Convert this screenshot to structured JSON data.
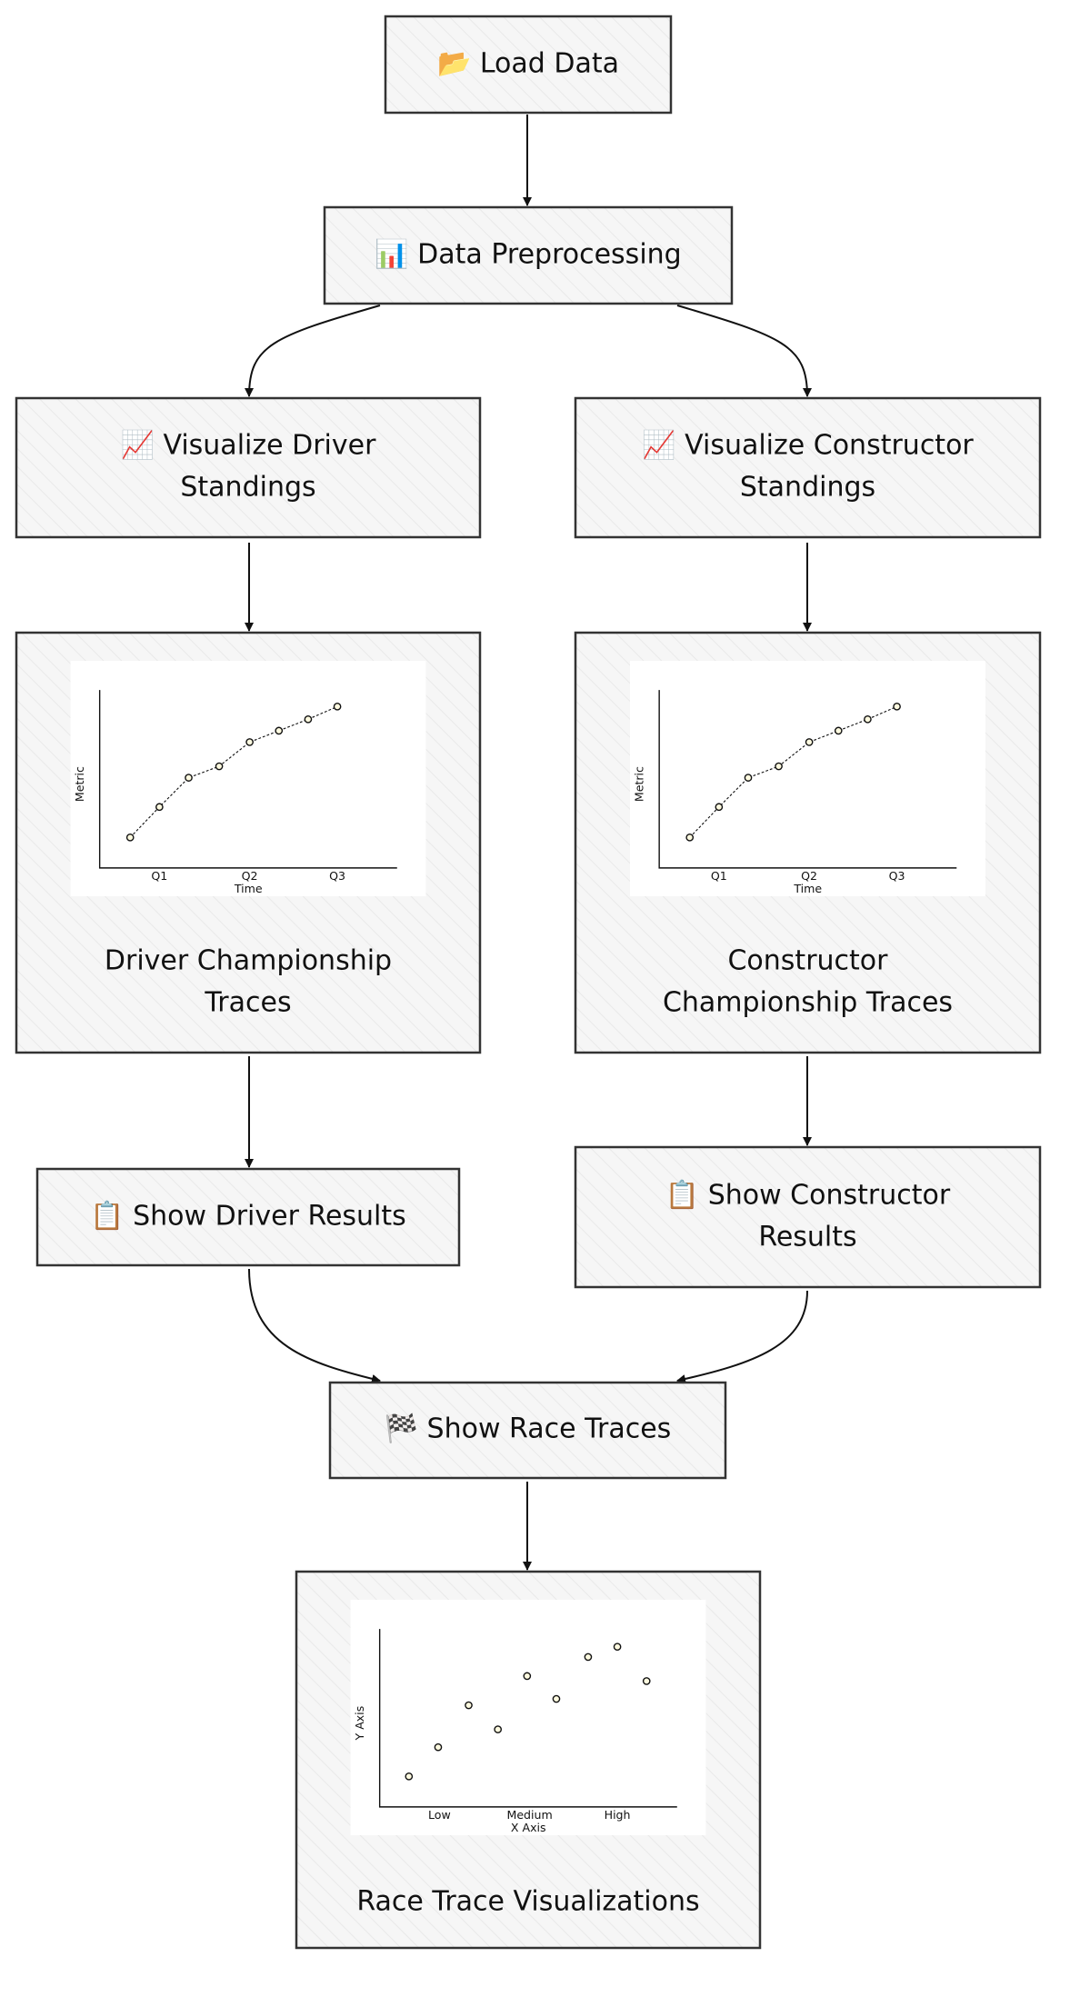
{
  "nodes": [
    {
      "label_lines": [
        "📂 Load Data"
      ]
    },
    {
      "label_lines": [
        "📊 Data Preprocessing"
      ]
    },
    {
      "label_lines": [
        "📈 Visualize Driver",
        "Standings"
      ]
    },
    {
      "label_lines": [
        "📈 Visualize Constructor",
        "Standings"
      ]
    },
    {
      "label_lines": [
        "Driver Championship",
        "Traces"
      ],
      "thumbnail": {
        "kind": "line",
        "y_label": "Metric",
        "x_label": "Time",
        "x_ticks": [
          "Q1",
          "Q2",
          "Q3"
        ]
      }
    },
    {
      "label_lines": [
        "Constructor",
        "Championship Traces"
      ],
      "thumbnail": {
        "kind": "line",
        "y_label": "Metric",
        "x_label": "Time",
        "x_ticks": [
          "Q1",
          "Q2",
          "Q3"
        ]
      }
    },
    {
      "label_lines": [
        "📋 Show Driver Results"
      ]
    },
    {
      "label_lines": [
        "📋 Show Constructor",
        "Results"
      ]
    },
    {
      "label_lines": [
        "🏁 Show Race Traces"
      ]
    },
    {
      "label_lines": [
        "Race Trace Visualizations"
      ],
      "thumbnail": {
        "kind": "scatter",
        "y_label": "Y Axis",
        "x_label": "X Axis",
        "x_ticks": [
          "Low",
          "Medium",
          "High"
        ]
      }
    }
  ]
}
